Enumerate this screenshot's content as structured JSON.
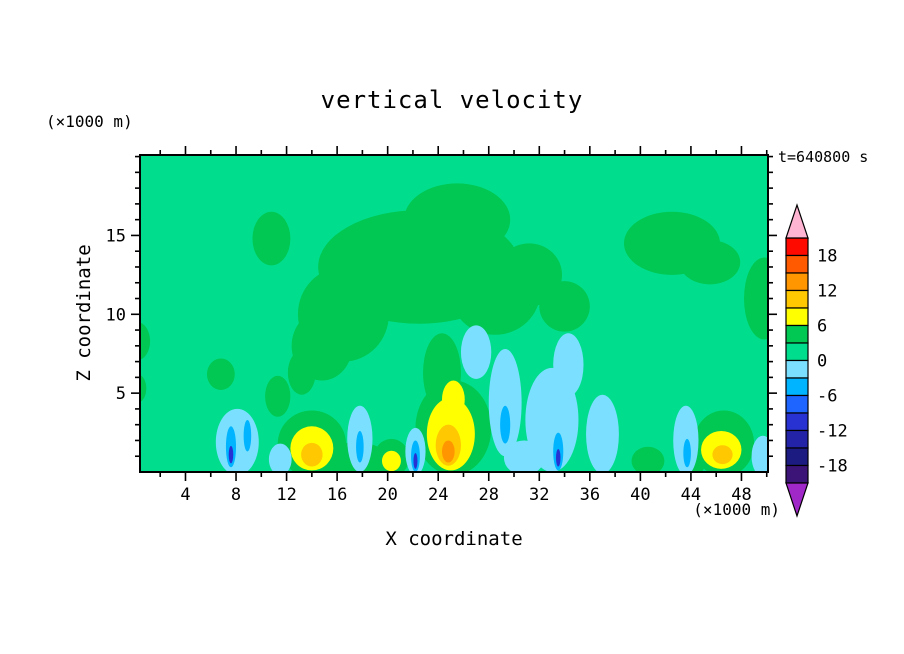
{
  "chart_data": {
    "type": "heatmap",
    "style": "filled-contour",
    "title": "vertical velocity",
    "xlabel": "X coordinate",
    "ylabel": "Z coordinate",
    "x_units": "(×1000 m)",
    "z_units": "(×1000 m)",
    "time_label": "t=640800 s",
    "contour_interval": 3,
    "x_axis": {
      "range": [
        0.4,
        50.1
      ],
      "major_ticks": [
        4,
        8,
        12,
        16,
        20,
        24,
        28,
        32,
        36,
        40,
        44,
        48
      ],
      "minor_step": 2
    },
    "z_axis": {
      "range": [
        0,
        20.1
      ],
      "major_ticks": [
        5,
        10,
        15
      ],
      "minor_step": 1
    },
    "colorbar": {
      "boundary_labels": [
        18,
        12,
        6,
        0,
        -6,
        -12,
        -18
      ],
      "arrow_top": "#ffb4d2",
      "arrow_bottom": "#a028c8",
      "segments": [
        {
          "range": "18..21",
          "color": "#ff0a00"
        },
        {
          "range": "15..18",
          "color": "#ff5a00"
        },
        {
          "range": "12..15",
          "color": "#ff9600"
        },
        {
          "range": "9..12",
          "color": "#ffc800"
        },
        {
          "range": "6..9",
          "color": "#ffff00"
        },
        {
          "range": "3..6",
          "color": "#00c853"
        },
        {
          "range": "0..3",
          "color": "#00de8d"
        },
        {
          "range": "-3..0",
          "color": "#7be0ff"
        },
        {
          "range": "-6..-3",
          "color": "#00b4ff"
        },
        {
          "range": "-9..-6",
          "color": "#1e64ff"
        },
        {
          "range": "-12..-9",
          "color": "#2832d2"
        },
        {
          "range": "-15..-12",
          "color": "#2323a8"
        },
        {
          "range": "-18..-15",
          "color": "#1b1b82"
        },
        {
          "range": "-21..-18",
          "color": "#3c1478"
        }
      ]
    },
    "field": {
      "background_band": "0..3",
      "features": [
        {
          "band": "3..6",
          "x": 22.5,
          "z": 13.0,
          "rx": 8.0,
          "rz": 3.6
        },
        {
          "band": "3..6",
          "x": 25.5,
          "z": 16.0,
          "rx": 4.2,
          "rz": 2.3
        },
        {
          "band": "3..6",
          "x": 16.5,
          "z": 10.0,
          "rx": 3.6,
          "rz": 3.0
        },
        {
          "band": "3..6",
          "x": 14.8,
          "z": 8.0,
          "rx": 2.4,
          "rz": 2.2
        },
        {
          "band": "3..6",
          "x": 28.5,
          "z": 11.5,
          "rx": 3.6,
          "rz": 2.8
        },
        {
          "band": "3..6",
          "x": 31.2,
          "z": 12.5,
          "rx": 2.6,
          "rz": 2.0
        },
        {
          "band": "3..6",
          "x": 34.0,
          "z": 10.5,
          "rx": 2.0,
          "rz": 1.6
        },
        {
          "band": "3..6",
          "x": 42.5,
          "z": 14.5,
          "rx": 3.8,
          "rz": 2.0
        },
        {
          "band": "3..6",
          "x": 45.5,
          "z": 13.3,
          "rx": 2.4,
          "rz": 1.4
        },
        {
          "band": "3..6",
          "x": 49.8,
          "z": 11.0,
          "rx": 1.6,
          "rz": 2.6
        },
        {
          "band": "3..6",
          "x": 10.8,
          "z": 14.8,
          "rx": 1.5,
          "rz": 1.7
        },
        {
          "band": "3..6",
          "x": 0.2,
          "z": 8.3,
          "rx": 1.0,
          "rz": 1.2
        },
        {
          "band": "3..6",
          "x": 0.2,
          "z": 5.3,
          "rx": 0.7,
          "rz": 0.9
        },
        {
          "band": "3..6",
          "x": 6.8,
          "z": 6.2,
          "rx": 1.1,
          "rz": 1.0
        },
        {
          "band": "3..6",
          "x": 11.3,
          "z": 4.8,
          "rx": 1.0,
          "rz": 1.3
        },
        {
          "band": "3..6",
          "x": 13.2,
          "z": 6.3,
          "rx": 1.1,
          "rz": 1.4
        },
        {
          "band": "3..6",
          "x": 14.0,
          "z": 1.8,
          "rx": 2.7,
          "rz": 2.1
        },
        {
          "band": "3..6",
          "x": 17.5,
          "z": 0.8,
          "rx": 2.5,
          "rz": 1.1
        },
        {
          "band": "3..6",
          "x": 20.3,
          "z": 0.9,
          "rx": 1.4,
          "rz": 1.2
        },
        {
          "band": "3..6",
          "x": 25.2,
          "z": 2.8,
          "rx": 3.0,
          "rz": 3.0
        },
        {
          "band": "3..6",
          "x": 24.3,
          "z": 6.3,
          "rx": 1.5,
          "rz": 2.5
        },
        {
          "band": "3..6",
          "x": 46.6,
          "z": 1.8,
          "rx": 2.4,
          "rz": 2.1
        },
        {
          "band": "3..6",
          "x": 40.6,
          "z": 0.7,
          "rx": 1.3,
          "rz": 0.9
        },
        {
          "band": "3..6",
          "x": 44.2,
          "z": 0.5,
          "rx": 0.9,
          "rz": 0.7
        },
        {
          "band": "-3..0",
          "x": 8.1,
          "z": 1.9,
          "rx": 1.7,
          "rz": 2.1
        },
        {
          "band": "-3..0",
          "x": 11.5,
          "z": 0.8,
          "rx": 0.9,
          "rz": 1.0
        },
        {
          "band": "-3..0",
          "x": 17.8,
          "z": 2.1,
          "rx": 1.0,
          "rz": 2.1
        },
        {
          "band": "-3..0",
          "x": 22.2,
          "z": 1.3,
          "rx": 0.8,
          "rz": 1.5
        },
        {
          "band": "-3..0",
          "x": 29.3,
          "z": 4.4,
          "rx": 1.3,
          "rz": 3.4
        },
        {
          "band": "-3..0",
          "x": 33.0,
          "z": 3.3,
          "rx": 2.1,
          "rz": 3.3
        },
        {
          "band": "-3..0",
          "x": 34.3,
          "z": 6.8,
          "rx": 1.2,
          "rz": 2.0
        },
        {
          "band": "-3..0",
          "x": 30.8,
          "z": 0.9,
          "rx": 1.6,
          "rz": 1.1
        },
        {
          "band": "-3..0",
          "x": 37.0,
          "z": 2.4,
          "rx": 1.3,
          "rz": 2.5
        },
        {
          "band": "-3..0",
          "x": 27.0,
          "z": 7.6,
          "rx": 1.2,
          "rz": 1.7
        },
        {
          "band": "-3..0",
          "x": 43.6,
          "z": 2.0,
          "rx": 1.0,
          "rz": 2.2
        },
        {
          "band": "-3..0",
          "x": 49.7,
          "z": 1.0,
          "rx": 0.9,
          "rz": 1.3
        },
        {
          "band": "-6..-3",
          "x": 7.6,
          "z": 1.6,
          "rx": 0.4,
          "rz": 1.3
        },
        {
          "band": "-6..-3",
          "x": 8.9,
          "z": 2.3,
          "rx": 0.3,
          "rz": 1.0
        },
        {
          "band": "-6..-3",
          "x": 17.8,
          "z": 1.6,
          "rx": 0.3,
          "rz": 1.0
        },
        {
          "band": "-6..-3",
          "x": 22.2,
          "z": 1.0,
          "rx": 0.35,
          "rz": 1.0
        },
        {
          "band": "-6..-3",
          "x": 29.3,
          "z": 3.0,
          "rx": 0.4,
          "rz": 1.2
        },
        {
          "band": "-6..-3",
          "x": 33.5,
          "z": 1.3,
          "rx": 0.4,
          "rz": 1.2
        },
        {
          "band": "-6..-3",
          "x": 43.7,
          "z": 1.2,
          "rx": 0.3,
          "rz": 0.9
        },
        {
          "band": "-12..-9",
          "x": 7.6,
          "z": 1.1,
          "rx": 0.18,
          "rz": 0.55
        },
        {
          "band": "-12..-9",
          "x": 22.2,
          "z": 0.7,
          "rx": 0.16,
          "rz": 0.5
        },
        {
          "band": "-12..-9",
          "x": 33.5,
          "z": 0.9,
          "rx": 0.18,
          "rz": 0.55
        },
        {
          "band": "6..9",
          "x": 14.0,
          "z": 1.5,
          "rx": 1.7,
          "rz": 1.4
        },
        {
          "band": "6..9",
          "x": 20.3,
          "z": 0.7,
          "rx": 0.75,
          "rz": 0.65
        },
        {
          "band": "6..9",
          "x": 25.0,
          "z": 2.4,
          "rx": 1.9,
          "rz": 2.3
        },
        {
          "band": "6..9",
          "x": 25.2,
          "z": 4.6,
          "rx": 0.9,
          "rz": 1.2
        },
        {
          "band": "6..9",
          "x": 46.4,
          "z": 1.4,
          "rx": 1.6,
          "rz": 1.2
        },
        {
          "band": "9..12",
          "x": 14.0,
          "z": 1.1,
          "rx": 0.85,
          "rz": 0.75
        },
        {
          "band": "9..12",
          "x": 24.8,
          "z": 1.7,
          "rx": 1.0,
          "rz": 1.3
        },
        {
          "band": "9..12",
          "x": 46.5,
          "z": 1.1,
          "rx": 0.8,
          "rz": 0.6
        },
        {
          "band": "12..15",
          "x": 24.8,
          "z": 1.3,
          "rx": 0.5,
          "rz": 0.7
        }
      ]
    }
  }
}
